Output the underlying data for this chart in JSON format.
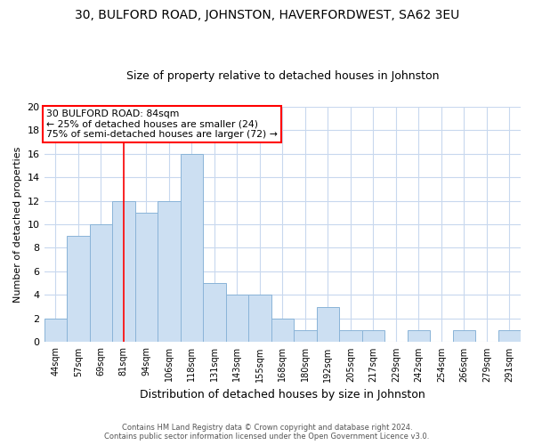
{
  "title": "30, BULFORD ROAD, JOHNSTON, HAVERFORDWEST, SA62 3EU",
  "subtitle": "Size of property relative to detached houses in Johnston",
  "xlabel": "Distribution of detached houses by size in Johnston",
  "ylabel": "Number of detached properties",
  "bar_color": "#ccdff2",
  "bar_edge_color": "#8ab4d8",
  "categories": [
    "44sqm",
    "57sqm",
    "69sqm",
    "81sqm",
    "94sqm",
    "106sqm",
    "118sqm",
    "131sqm",
    "143sqm",
    "155sqm",
    "168sqm",
    "180sqm",
    "192sqm",
    "205sqm",
    "217sqm",
    "229sqm",
    "242sqm",
    "254sqm",
    "266sqm",
    "279sqm",
    "291sqm"
  ],
  "values": [
    2,
    9,
    10,
    12,
    11,
    12,
    16,
    5,
    4,
    4,
    2,
    1,
    3,
    1,
    1,
    0,
    1,
    0,
    1,
    0,
    1
  ],
  "red_line_x": 3,
  "ylim": [
    0,
    20
  ],
  "yticks": [
    0,
    2,
    4,
    6,
    8,
    10,
    12,
    14,
    16,
    18,
    20
  ],
  "annotation_line1": "30 BULFORD ROAD: 84sqm",
  "annotation_line2": "← 25% of detached houses are smaller (24)",
  "annotation_line3": "75% of semi-detached houses are larger (72) →",
  "footer_line1": "Contains HM Land Registry data © Crown copyright and database right 2024.",
  "footer_line2": "Contains public sector information licensed under the Open Government Licence v3.0.",
  "background_color": "#ffffff",
  "grid_color": "#c8d8ee",
  "title_fontsize": 10,
  "subtitle_fontsize": 9,
  "xlabel_fontsize": 9,
  "ylabel_fontsize": 8,
  "tick_fontsize": 8,
  "xtick_fontsize": 7
}
